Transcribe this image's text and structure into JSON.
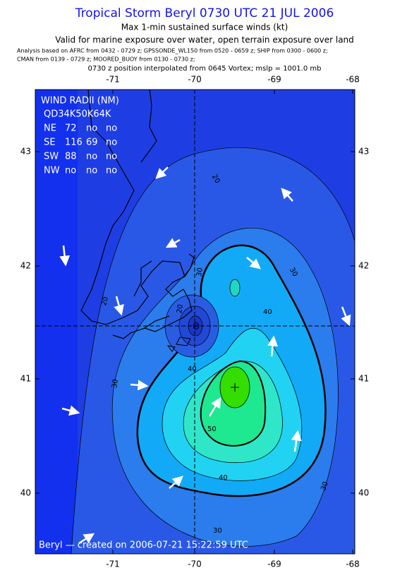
{
  "title": "Tropical Storm Beryl 0730 UTC 21 JUL 2006",
  "subtitle": "Max 1-min sustained surface winds (kt)",
  "valid_note": "Valid for marine exposure over water, open terrain exposure over land",
  "analysis_lines": [
    "Analysis based on  AFRC from 0432 - 0729 z;  GPSSONDE_WL150 from 0520 - 0659 z;  SHIP from 0300 - 0600 z;",
    "CMAN from 0139 - 0729 z;  MOORED_BUOY from 0130 - 0730 z;"
  ],
  "position_note": "0730 z position interpolated from 0645 Vortex; mslp = 1001.0 mb",
  "axes": {
    "lon_ticks": [
      -71,
      -70,
      -69,
      -68
    ],
    "lat_ticks": [
      43,
      42,
      41,
      40
    ]
  },
  "wind_radii": {
    "title": "WIND RADII (NM)",
    "header": "QD34K50K64K",
    "rows": [
      [
        "NE",
        72,
        "no",
        "no"
      ],
      [
        "SE",
        116,
        69,
        "no"
      ],
      [
        "SW",
        88,
        "no",
        "no"
      ],
      [
        "NW",
        "no",
        "no",
        "no"
      ]
    ]
  },
  "contour_labels": [
    20,
    30,
    40,
    40,
    50,
    30,
    40,
    30,
    30,
    20,
    20,
    30
  ],
  "footer": "Beryl — created on 2006-07-21 15:22:59 UTC"
}
